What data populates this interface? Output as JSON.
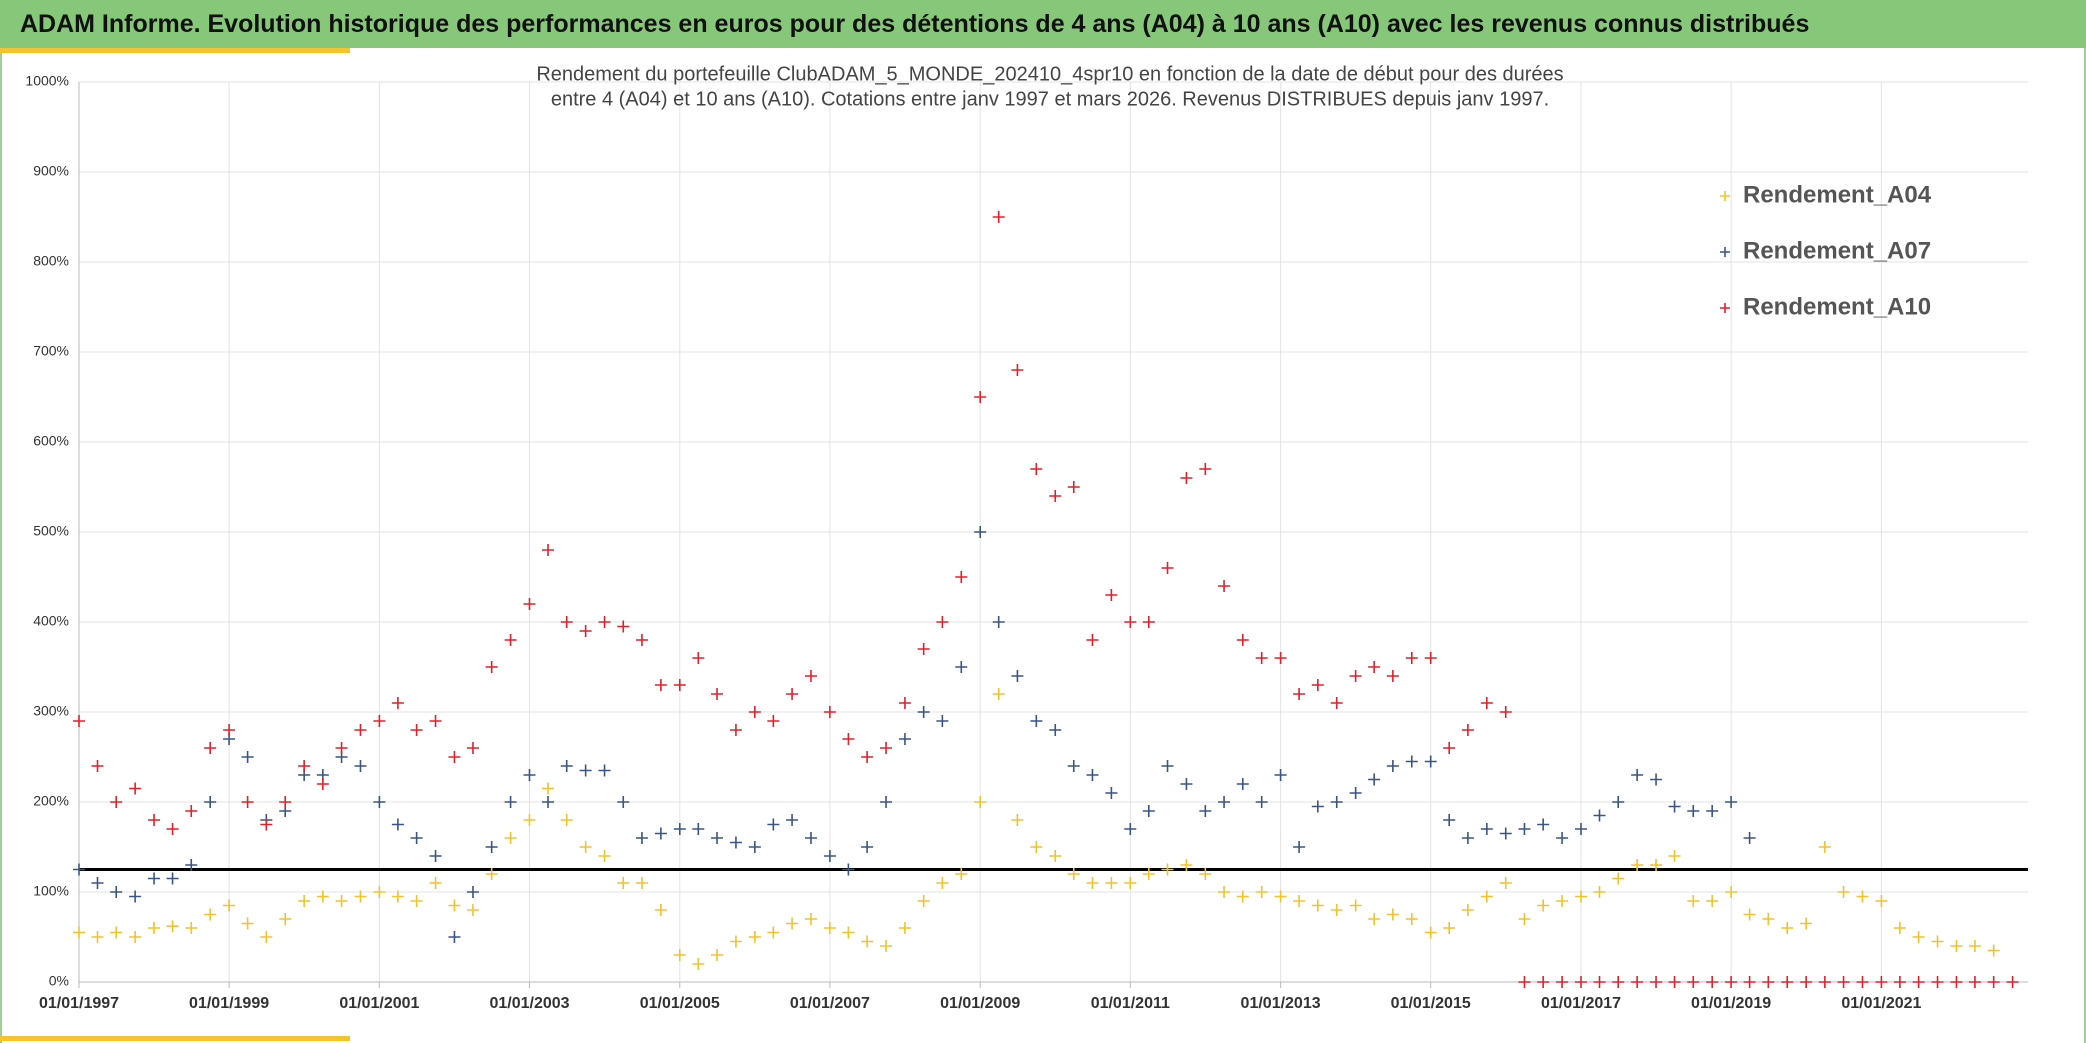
{
  "header": "ADAM Informe. Evolution historique des performances en euros pour des détentions de 4 ans (A04) à 10 ans (A10) avec les revenus connus distribués",
  "chart_data": {
    "type": "scatter",
    "title_lines": [
      "Rendement du portefeuille ClubADAM_5_MONDE_202410_4spr10  en fonction de la date de début pour des durées",
      "entre 4 (A04) et 10 ans (A10). Cotations entre janv 1997 et mars 2026. Revenus DISTRIBUES depuis janv 1997."
    ],
    "x": [
      "1997-01-01",
      "1997-04-01",
      "1997-07-01",
      "1997-10-01",
      "1998-01-01",
      "1998-04-01",
      "1998-07-01",
      "1998-10-01",
      "1999-01-01",
      "1999-04-01",
      "1999-07-01",
      "1999-10-01",
      "2000-01-01",
      "2000-04-01",
      "2000-07-01",
      "2000-10-01",
      "2001-01-01",
      "2001-04-01",
      "2001-07-01",
      "2001-10-01",
      "2002-01-01",
      "2002-04-01",
      "2002-07-01",
      "2002-10-01",
      "2003-01-01",
      "2003-04-01",
      "2003-07-01",
      "2003-10-01",
      "2004-01-01",
      "2004-04-01",
      "2004-07-01",
      "2004-10-01",
      "2005-01-01",
      "2005-04-01",
      "2005-07-01",
      "2005-10-01",
      "2006-01-01",
      "2006-04-01",
      "2006-07-01",
      "2006-10-01",
      "2007-01-01",
      "2007-04-01",
      "2007-07-01",
      "2007-10-01",
      "2008-01-01",
      "2008-04-01",
      "2008-07-01",
      "2008-10-01",
      "2009-01-01",
      "2009-04-01",
      "2009-07-01",
      "2009-10-01",
      "2010-01-01",
      "2010-04-01",
      "2010-07-01",
      "2010-10-01",
      "2011-01-01",
      "2011-04-01",
      "2011-07-01",
      "2011-10-01",
      "2012-01-01",
      "2012-04-01",
      "2012-07-01",
      "2012-10-01",
      "2013-01-01",
      "2013-04-01",
      "2013-07-01",
      "2013-10-01",
      "2014-01-01",
      "2014-04-01",
      "2014-07-01",
      "2014-10-01",
      "2015-01-01",
      "2015-04-01",
      "2015-07-01",
      "2015-10-01",
      "2016-01-01",
      "2016-04-01",
      "2016-07-01",
      "2016-10-01",
      "2017-01-01",
      "2017-04-01",
      "2017-07-01",
      "2017-10-01",
      "2018-01-01",
      "2018-04-01",
      "2018-07-01",
      "2018-10-01",
      "2019-01-01",
      "2019-04-01",
      "2019-07-01",
      "2019-10-01",
      "2020-01-01",
      "2020-04-01",
      "2020-07-01",
      "2020-10-01",
      "2021-01-01",
      "2021-04-01",
      "2021-07-01",
      "2021-10-01",
      "2022-01-01",
      "2022-04-01",
      "2022-07-01",
      "2022-10-01"
    ],
    "series": [
      {
        "name": "Rendement_A04",
        "color": "#f2c12e",
        "values": [
          55,
          50,
          55,
          50,
          60,
          62,
          60,
          75,
          85,
          65,
          50,
          70,
          90,
          95,
          90,
          95,
          100,
          95,
          90,
          110,
          85,
          80,
          120,
          160,
          180,
          215,
          180,
          150,
          140,
          110,
          110,
          80,
          30,
          20,
          30,
          45,
          50,
          55,
          65,
          70,
          60,
          55,
          45,
          40,
          60,
          90,
          110,
          120,
          200,
          320,
          180,
          150,
          140,
          120,
          110,
          110,
          110,
          120,
          125,
          130,
          120,
          100,
          95,
          100,
          95,
          90,
          85,
          80,
          85,
          70,
          75,
          70,
          55,
          60,
          80,
          95,
          110,
          70,
          85,
          90,
          95,
          100,
          115,
          130,
          130,
          140,
          90,
          90,
          100,
          75,
          70,
          60,
          65,
          150,
          100,
          95,
          90,
          60,
          50,
          45,
          40,
          40,
          35,
          null
        ]
      },
      {
        "name": "Rendement_A07",
        "color": "#3a5585",
        "values": [
          125,
          110,
          100,
          95,
          115,
          115,
          130,
          200,
          270,
          250,
          180,
          190,
          230,
          230,
          250,
          240,
          200,
          175,
          160,
          140,
          50,
          100,
          150,
          200,
          230,
          200,
          240,
          235,
          235,
          200,
          160,
          165,
          170,
          170,
          160,
          155,
          150,
          175,
          180,
          160,
          140,
          125,
          150,
          200,
          270,
          300,
          290,
          350,
          500,
          400,
          340,
          290,
          280,
          240,
          230,
          210,
          170,
          190,
          240,
          220,
          190,
          200,
          220,
          200,
          230,
          150,
          195,
          200,
          210,
          225,
          240,
          245,
          245,
          180,
          160,
          170,
          165,
          170,
          175,
          160,
          170,
          185,
          200,
          230,
          225,
          195,
          190,
          190,
          200,
          160,
          null,
          null,
          null,
          null,
          null,
          null,
          null,
          null,
          null,
          null,
          null,
          null,
          null,
          null
        ]
      },
      {
        "name": "Rendement_A10",
        "color": "#e0202a",
        "values": [
          290,
          240,
          200,
          215,
          180,
          170,
          190,
          260,
          280,
          200,
          175,
          200,
          240,
          220,
          260,
          280,
          290,
          310,
          280,
          290,
          250,
          260,
          350,
          380,
          420,
          480,
          400,
          390,
          400,
          395,
          380,
          330,
          330,
          360,
          320,
          280,
          300,
          290,
          320,
          340,
          300,
          270,
          250,
          260,
          310,
          370,
          400,
          450,
          650,
          850,
          680,
          570,
          540,
          550,
          380,
          430,
          400,
          400,
          460,
          560,
          570,
          440,
          380,
          360,
          360,
          320,
          330,
          310,
          340,
          350,
          340,
          360,
          360,
          260,
          280,
          310,
          300,
          0,
          0,
          0,
          0,
          0,
          0,
          0,
          0,
          0,
          0,
          0,
          0,
          0,
          0,
          0,
          0,
          0,
          0,
          0,
          0,
          0,
          0,
          0,
          0,
          0,
          0,
          0
        ]
      }
    ],
    "xlim": [
      "1997-01-01",
      "2022-12-15"
    ],
    "xticks": [
      {
        "value": "1997-01-01",
        "label": "01/01/1997"
      },
      {
        "value": "1999-01-01",
        "label": "01/01/1999"
      },
      {
        "value": "2001-01-01",
        "label": "01/01/2001"
      },
      {
        "value": "2003-01-01",
        "label": "01/01/2003"
      },
      {
        "value": "2005-01-01",
        "label": "01/01/2005"
      },
      {
        "value": "2007-01-01",
        "label": "01/01/2007"
      },
      {
        "value": "2009-01-01",
        "label": "01/01/2009"
      },
      {
        "value": "2011-01-01",
        "label": "01/01/2011"
      },
      {
        "value": "2013-01-01",
        "label": "01/01/2013"
      },
      {
        "value": "2015-01-01",
        "label": "01/01/2015"
      },
      {
        "value": "2017-01-01",
        "label": "01/01/2017"
      },
      {
        "value": "2019-01-01",
        "label": "01/01/2019"
      },
      {
        "value": "2021-01-01",
        "label": "01/01/2021"
      }
    ],
    "ylim": [
      0,
      1000
    ],
    "yticks": [
      {
        "value": 0,
        "label": "0%"
      },
      {
        "value": 100,
        "label": "100%"
      },
      {
        "value": 200,
        "label": "200%"
      },
      {
        "value": 300,
        "label": "300%"
      },
      {
        "value": 400,
        "label": "400%"
      },
      {
        "value": 500,
        "label": "500%"
      },
      {
        "value": 600,
        "label": "600%"
      },
      {
        "value": 700,
        "label": "700%"
      },
      {
        "value": 800,
        "label": "800%"
      },
      {
        "value": 900,
        "label": "900%"
      },
      {
        "value": 1000,
        "label": "1000%"
      }
    ],
    "grid": true,
    "reference_line": {
      "value": 125,
      "color": "#000000"
    },
    "legend": "top-right"
  }
}
